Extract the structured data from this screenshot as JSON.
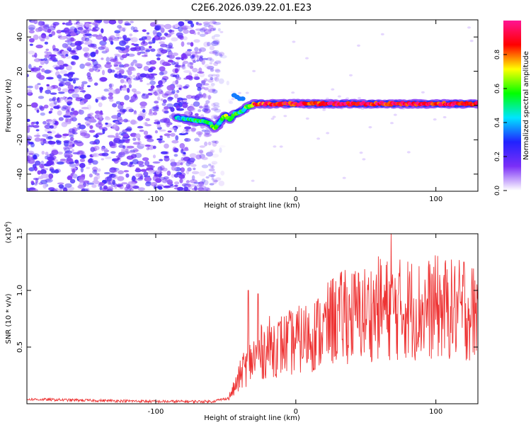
{
  "title": "C2E6.2026.039.22.01.E23",
  "chart_data": [
    {
      "type": "heatmap",
      "title": "C2E6.2026.039.22.01.E23",
      "xlabel": "Height of straight line (km)",
      "ylabel": "Frequency (Hz)",
      "xlim": [
        -192,
        130
      ],
      "ylim": [
        -50,
        50
      ],
      "xticks": [
        -100,
        0,
        100
      ],
      "xtick_labels": [
        "-100",
        "0",
        "100"
      ],
      "yticks": [
        -40,
        -20,
        0,
        20,
        40
      ],
      "ytick_labels": [
        "-40",
        "-20",
        "0",
        "20",
        "40"
      ],
      "colorbar": {
        "label": "Normalized spectral amplitude",
        "range": [
          0,
          1
        ],
        "ticks": [
          0.0,
          0.2,
          0.4,
          0.6,
          0.8
        ],
        "tick_labels": [
          "0.0",
          "0.2",
          "0.4",
          "0.6",
          "0.8"
        ],
        "colors": [
          "#ffffff",
          "#7b2ff7",
          "#2222ff",
          "#00e5ff",
          "#00ff00",
          "#ffff00",
          "#ff0000",
          "#ff1493"
        ]
      },
      "noise_region": {
        "x_from": -192,
        "x_to": -55,
        "amplitude": "0.1-0.3"
      },
      "ridge": {
        "x": [
          -85,
          -78,
          -72,
          -66,
          -62,
          -58,
          -55,
          -52,
          -50,
          -47,
          -44,
          -41,
          -38,
          -35,
          -32,
          -30,
          -25,
          -20,
          -10,
          0,
          20,
          40,
          60,
          80,
          100,
          120,
          130
        ],
        "frequency": [
          -7,
          -8,
          -9,
          -9,
          -10,
          -13,
          -11,
          -7,
          -6,
          -8,
          -5,
          -4,
          -3,
          -1,
          0,
          1,
          1,
          1,
          1,
          1,
          1,
          1,
          1,
          1,
          1,
          1,
          1
        ],
        "amplitude": [
          0.4,
          0.45,
          0.5,
          0.5,
          0.55,
          0.6,
          0.5,
          0.55,
          0.6,
          0.55,
          0.5,
          0.55,
          0.5,
          0.6,
          0.7,
          0.85,
          0.85,
          0.9,
          0.9,
          0.9,
          0.9,
          0.95,
          0.9,
          0.9,
          0.9,
          0.9,
          0.9
        ]
      }
    },
    {
      "type": "line",
      "xlabel": "Height of straight line (km)",
      "ylabel": "SNR (10 * v/v)",
      "y_multiplier": "(x10^4)",
      "xlim": [
        -192,
        130
      ],
      "ylim": [
        0,
        1.5
      ],
      "xticks": [
        -100,
        0,
        100
      ],
      "xtick_labels": [
        "-100",
        "0",
        "100"
      ],
      "yticks": [
        0.5,
        1.0,
        1.5
      ],
      "ytick_labels": [
        "0.5",
        "1.0",
        "1.5"
      ],
      "color": "#ee3333",
      "series": [
        {
          "name": "SNR",
          "x": [
            -192,
            -150,
            -100,
            -60,
            -48,
            -42,
            -38,
            -34,
            -30,
            -25,
            -20,
            -10,
            0,
            10,
            20,
            25,
            30,
            40,
            50,
            55,
            60,
            70,
            80,
            90,
            100,
            110,
            120,
            130
          ],
          "envelope_mean": [
            0.04,
            0.03,
            0.02,
            0.02,
            0.05,
            0.18,
            0.3,
            0.35,
            0.4,
            0.45,
            0.5,
            0.52,
            0.55,
            0.6,
            0.65,
            0.72,
            0.75,
            0.78,
            0.8,
            0.82,
            0.85,
            0.82,
            0.85,
            0.82,
            0.85,
            0.83,
            0.82,
            0.8
          ],
          "peaks": [
            {
              "x": -34,
              "y": 1.0
            },
            {
              "x": -27,
              "y": 0.97
            },
            {
              "x": 26,
              "y": 1.1
            },
            {
              "x": 35,
              "y": 1.18
            },
            {
              "x": 68,
              "y": 1.5
            },
            {
              "x": 120,
              "y": 1.25
            }
          ]
        }
      ]
    }
  ]
}
